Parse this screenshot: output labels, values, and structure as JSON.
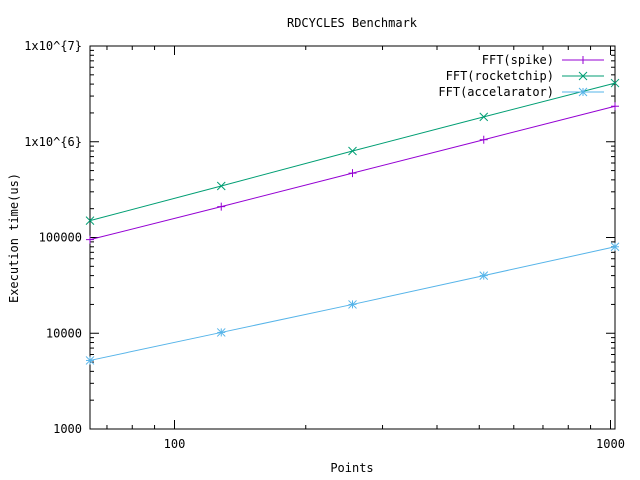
{
  "chart_data": {
    "type": "line",
    "title": "RDCYCLES Benchmark",
    "xlabel": "Points",
    "ylabel": "Execution time(us)",
    "x_scale": "log",
    "y_scale": "log",
    "xlim": [
      64,
      1024
    ],
    "ylim": [
      1000,
      10000000
    ],
    "x_ticks": [
      {
        "value": 100,
        "label": "100"
      },
      {
        "value": 1000,
        "label": "1000"
      }
    ],
    "y_ticks": [
      {
        "value": 1000,
        "label": "1000"
      },
      {
        "value": 10000,
        "label": "10000"
      },
      {
        "value": 100000,
        "label": "100000"
      },
      {
        "value": 1000000,
        "label": "1x10^{6}"
      },
      {
        "value": 10000000,
        "label": "1x10^{7}"
      }
    ],
    "legend_position": "top-right",
    "grid": false,
    "x": [
      64,
      128,
      256,
      512,
      1024
    ],
    "series": [
      {
        "name": "FFT(spike)",
        "color": "#9400d3",
        "marker": "plus",
        "values": [
          95000,
          210000,
          470000,
          1050000,
          2350000
        ]
      },
      {
        "name": "FFT(rocketchip)",
        "color": "#009e73",
        "marker": "cross",
        "values": [
          150000,
          345000,
          800000,
          1820000,
          4100000
        ]
      },
      {
        "name": "FFT(accelarator)",
        "color": "#56b4e9",
        "marker": "star",
        "values": [
          5200,
          10200,
          20000,
          40000,
          80000
        ]
      }
    ]
  }
}
